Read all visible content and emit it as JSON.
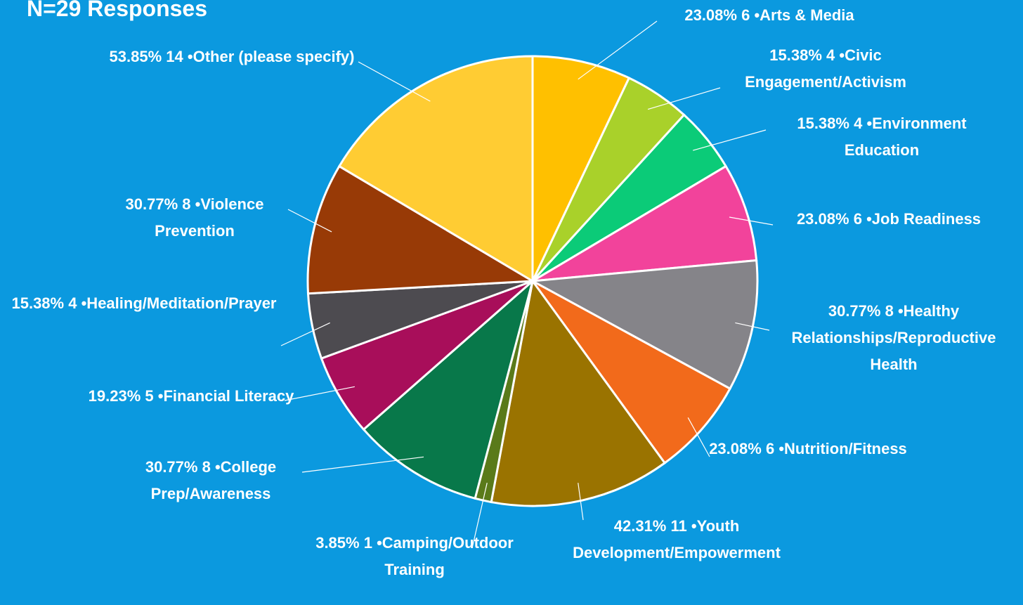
{
  "chart_data": {
    "type": "pie",
    "title": "N=29 Responses",
    "categories": [
      "•Arts & Media",
      "•Civic Engagement/Activism",
      "•Environment Education",
      "•Job Readiness",
      "•Healthy Relationships/Reproductive Health",
      "•Nutrition/Fitness",
      "•Youth Development/Empowerment",
      "•Camping/Outdoor Training",
      "•College Prep/Awareness",
      "•Financial Literacy",
      "•Healing/Meditation/Prayer",
      "•Violence Prevention",
      "•Other (please specify)"
    ],
    "values": [
      6,
      4,
      4,
      6,
      8,
      6,
      11,
      1,
      8,
      5,
      4,
      8,
      14
    ],
    "percent_labels": [
      "23.08%",
      "15.38%",
      "15.38%",
      "23.08%",
      "30.77%",
      "23.08%",
      "42.31%",
      "3.85%",
      "30.77%",
      "19.23%",
      "15.38%",
      "30.77%",
      "53.85%"
    ],
    "colors": [
      "#FFC000",
      "#A9D12A",
      "#0BCB78",
      "#F2439B",
      "#858489",
      "#F26A1B",
      "#9A7300",
      "#5A7A1A",
      "#08784A",
      "#A80E5A",
      "#4D4B50",
      "#983A06",
      "#FFCC33"
    ]
  }
}
